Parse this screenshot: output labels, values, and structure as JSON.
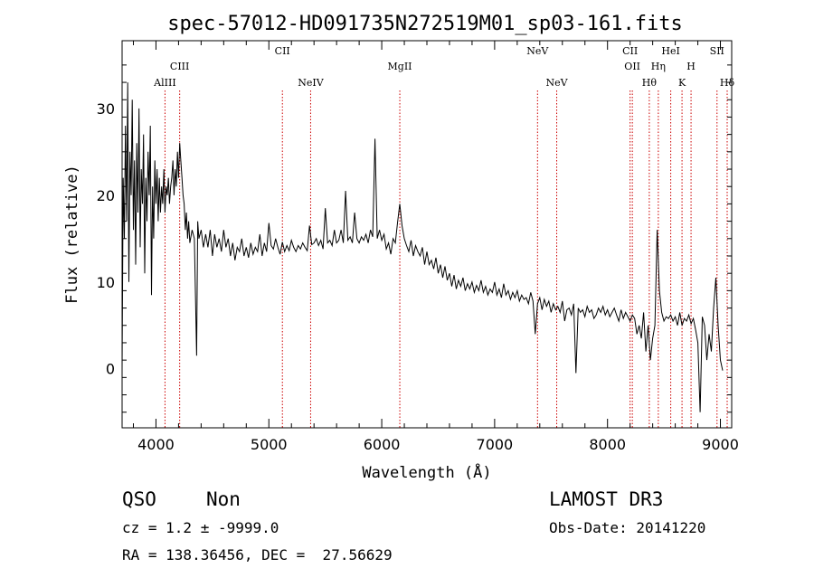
{
  "chart_data": {
    "type": "line",
    "title": "spec-57012-HD091735N272519M01_sp03-161.fits",
    "xlabel": "Wavelength (Å)",
    "ylabel": "Flux (relative)",
    "xlim": [
      3700,
      9100
    ],
    "ylim": [
      -6.8,
      37.8
    ],
    "x_ticks": [
      4000,
      5000,
      6000,
      7000,
      8000,
      9000
    ],
    "y_ticks": [
      0,
      10,
      20,
      30
    ],
    "grid": false,
    "legend": "none",
    "line_color": "#000000",
    "marker_color": "#cc0000",
    "lines": [
      {
        "label": "AlIII",
        "wavelength": 4080,
        "row": 2
      },
      {
        "label": "CIII",
        "wavelength": 4210,
        "row": 1
      },
      {
        "label": "CII",
        "wavelength": 5120,
        "row": 0
      },
      {
        "label": "NeIV",
        "wavelength": 5370,
        "row": 2
      },
      {
        "label": "MgII",
        "wavelength": 6160,
        "row": 1
      },
      {
        "label": "NeV",
        "wavelength": 7380,
        "row": 0
      },
      {
        "label": "NeV",
        "wavelength": 7550,
        "row": 2
      },
      {
        "label": "CII",
        "wavelength": 8200,
        "row": 0
      },
      {
        "label": "OII",
        "wavelength": 8220,
        "row": 1
      },
      {
        "label": "Hθ",
        "wavelength": 8370,
        "row": 2
      },
      {
        "label": "Hη",
        "wavelength": 8450,
        "row": 1
      },
      {
        "label": "HeI",
        "wavelength": 8560,
        "row": 0
      },
      {
        "label": "K",
        "wavelength": 8660,
        "row": 2
      },
      {
        "label": "H",
        "wavelength": 8740,
        "row": 1
      },
      {
        "label": "SII",
        "wavelength": 8970,
        "row": 0
      },
      {
        "label": "Hδ",
        "wavelength": 9060,
        "row": 2
      }
    ],
    "series": [
      {
        "x": [
          3700,
          3710,
          3720,
          3730,
          3740,
          3750,
          3760,
          3770,
          3780,
          3790,
          3800,
          3810,
          3820,
          3830,
          3840,
          3850,
          3860,
          3870,
          3880,
          3890,
          3900,
          3910,
          3920,
          3930,
          3940,
          3950,
          3960,
          3970,
          3980,
          3990,
          4000,
          4010,
          4020,
          4030,
          4040,
          4050,
          4060,
          4070,
          4080,
          4090,
          4100,
          4110,
          4120,
          4130,
          4140,
          4150,
          4160,
          4170,
          4180,
          4190,
          4200,
          4210,
          4220,
          4230,
          4240,
          4250,
          4260,
          4270,
          4280,
          4290,
          4300,
          4320,
          4340,
          4360,
          4370,
          4380,
          4400,
          4420,
          4440,
          4460,
          4480,
          4500,
          4520,
          4540,
          4560,
          4580,
          4600,
          4620,
          4640,
          4660,
          4680,
          4700,
          4720,
          4740,
          4760,
          4780,
          4800,
          4820,
          4840,
          4860,
          4880,
          4900,
          4920,
          4940,
          4960,
          4980,
          5000,
          5020,
          5040,
          5060,
          5080,
          5100,
          5120,
          5140,
          5160,
          5180,
          5200,
          5220,
          5240,
          5260,
          5280,
          5300,
          5320,
          5340,
          5360,
          5380,
          5400,
          5420,
          5440,
          5460,
          5480,
          5500,
          5520,
          5540,
          5560,
          5580,
          5600,
          5620,
          5640,
          5660,
          5680,
          5700,
          5720,
          5740,
          5760,
          5780,
          5800,
          5820,
          5840,
          5860,
          5880,
          5900,
          5920,
          5940,
          5960,
          5980,
          6000,
          6020,
          6040,
          6060,
          6080,
          6100,
          6120,
          6140,
          6160,
          6180,
          6200,
          6220,
          6240,
          6260,
          6280,
          6300,
          6320,
          6340,
          6360,
          6380,
          6400,
          6420,
          6440,
          6460,
          6480,
          6500,
          6520,
          6540,
          6560,
          6580,
          6600,
          6620,
          6640,
          6660,
          6680,
          6700,
          6720,
          6740,
          6760,
          6780,
          6800,
          6820,
          6840,
          6860,
          6880,
          6900,
          6920,
          6940,
          6960,
          6980,
          7000,
          7020,
          7040,
          7060,
          7080,
          7100,
          7120,
          7140,
          7160,
          7180,
          7200,
          7220,
          7240,
          7260,
          7280,
          7300,
          7320,
          7340,
          7360,
          7380,
          7400,
          7420,
          7440,
          7460,
          7480,
          7500,
          7520,
          7540,
          7560,
          7580,
          7600,
          7620,
          7640,
          7660,
          7680,
          7700,
          7720,
          7740,
          7760,
          7780,
          7800,
          7820,
          7840,
          7860,
          7880,
          7900,
          7920,
          7940,
          7960,
          7980,
          8000,
          8020,
          8040,
          8060,
          8080,
          8100,
          8120,
          8140,
          8160,
          8180,
          8200,
          8220,
          8240,
          8260,
          8280,
          8300,
          8320,
          8340,
          8360,
          8380,
          8400,
          8420,
          8440,
          8460,
          8480,
          8500,
          8520,
          8540,
          8560,
          8580,
          8600,
          8620,
          8640,
          8660,
          8680,
          8700,
          8720,
          8740,
          8760,
          8780,
          8800,
          8820,
          8840,
          8860,
          8880,
          8900,
          8920,
          8940,
          8960,
          8980,
          9000,
          9020
        ],
        "y": [
          0,
          22,
          15,
          28,
          17,
          33,
          10,
          25,
          20,
          31,
          16,
          24,
          12,
          26,
          18,
          30,
          14,
          23,
          19,
          27,
          11,
          22,
          17,
          25,
          20,
          28,
          8.5,
          21,
          15,
          24,
          19,
          23,
          17,
          22,
          18,
          21,
          19,
          23,
          18,
          21,
          20,
          22,
          19,
          21,
          22,
          24,
          20,
          23,
          21,
          25,
          22,
          26,
          24,
          22,
          20,
          19,
          16,
          18,
          15,
          17,
          14.5,
          16,
          15,
          1.5,
          17,
          15,
          16,
          14,
          15.5,
          14,
          16,
          13,
          15.5,
          14,
          15,
          13.5,
          16,
          14,
          15,
          13,
          14.5,
          12.5,
          14,
          13.5,
          15,
          13,
          14,
          12.8,
          14.5,
          13.2,
          14,
          13.5,
          15.5,
          13,
          14.5,
          13.5,
          16.8,
          14.2,
          13.8,
          15,
          14,
          13.2,
          14.6,
          13.5,
          14.2,
          13.6,
          14.8,
          14,
          13.5,
          14.2,
          13.8,
          14.5,
          14,
          13.6,
          16.5,
          14.3,
          14.5,
          15,
          14.2,
          14.8,
          13.8,
          18.5,
          14.5,
          14.8,
          14.2,
          16,
          14.5,
          14.8,
          16,
          14.5,
          20.5,
          14.8,
          15.2,
          14.5,
          18,
          15,
          14.5,
          15.2,
          14.8,
          15.5,
          14.5,
          16,
          15.2,
          26.5,
          15,
          16,
          14.8,
          15.5,
          13.8,
          14.5,
          13.2,
          15,
          14.5,
          16.8,
          19,
          16.5,
          15,
          14.2,
          13.5,
          14.8,
          13,
          14.2,
          13.5,
          13,
          14,
          12,
          13.5,
          12,
          12.5,
          11.5,
          12.8,
          11,
          12,
          10.5,
          11.8,
          10.2,
          11,
          9.5,
          10.8,
          9.2,
          10.2,
          9.5,
          10.5,
          9,
          9.8,
          9.2,
          10,
          8.8,
          9.6,
          9,
          10.2,
          8.8,
          9.5,
          8.5,
          9.2,
          8.8,
          10,
          8.5,
          9.2,
          8.2,
          9.8,
          8.5,
          9,
          8,
          8.8,
          8.2,
          9,
          7.8,
          8.5,
          8,
          8.2,
          7.5,
          8.8,
          7.8,
          4,
          7.5,
          8.2,
          6.8,
          8,
          7.2,
          7.8,
          6.5,
          7.5,
          6.8,
          7.2,
          6.5,
          7.8,
          5.5,
          6.8,
          7,
          6.2,
          7.5,
          -0.5,
          7,
          6.5,
          6.8,
          6,
          7.2,
          6.5,
          6.8,
          5.8,
          6.2,
          7,
          6.5,
          7.2,
          6.2,
          6.8,
          6,
          6.5,
          7,
          6.2,
          5.5,
          6.8,
          5.8,
          6.5,
          6,
          5.5,
          6.2,
          5.8,
          4,
          5,
          3.5,
          6.5,
          2,
          5,
          1,
          3.5,
          5,
          16,
          9,
          6.5,
          5.5,
          6,
          5.8,
          6.2,
          5.5,
          6,
          5,
          6.5,
          5,
          5.8,
          5.5,
          6.2,
          5.2,
          5.8,
          4.5,
          3,
          -5,
          6,
          5,
          1,
          4,
          2,
          7,
          10.5,
          5,
          1,
          -0.2
        ]
      }
    ]
  },
  "info": {
    "class": "QSO",
    "subclass": "Non",
    "survey": "LAMOST DR3",
    "cz": "cz = 1.2 ± -9999.0",
    "obs_date": "Obs-Date: 20141220",
    "coords": "RA = 138.36456, DEC =  27.56629"
  }
}
